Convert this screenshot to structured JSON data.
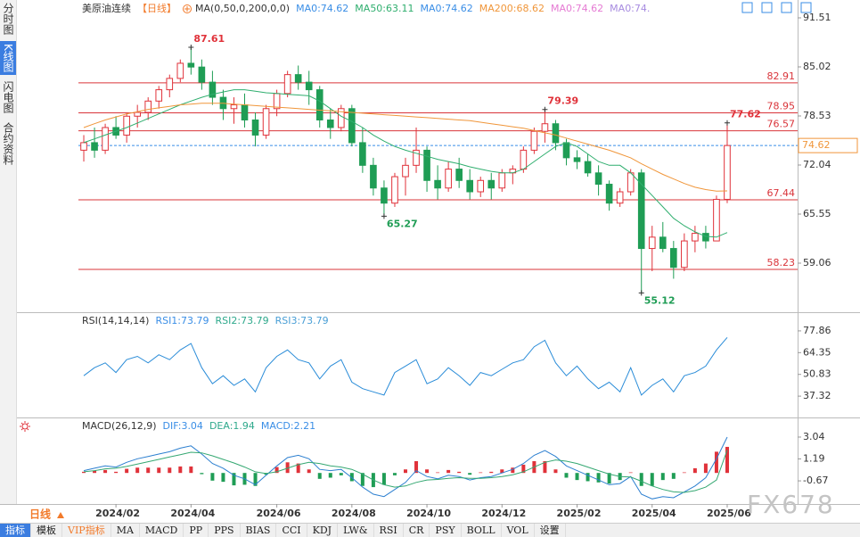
{
  "sidebar": {
    "tabs": [
      "分时图",
      "K线图",
      "闪电图",
      "合约资料"
    ]
  },
  "chart_data": [
    {
      "type": "candlestick",
      "title": "美原油连续",
      "period": "【日线】",
      "ma_params": "MA(0,50,0,200,0,0)",
      "legend": [
        {
          "text": "MA0:74.62",
          "color": "#3a8ee6"
        },
        {
          "text": "MA50:63.11",
          "color": "#2fae6e"
        },
        {
          "text": "MA0:74.62",
          "color": "#3a8ee6"
        },
        {
          "text": "MA200:68.62",
          "color": "#f0963a"
        },
        {
          "text": "MA0:74.62",
          "color": "#e57ad3"
        },
        {
          "text": "MA0:74.",
          "color": "#a78be0"
        }
      ],
      "open": [
        74,
        75,
        74,
        77,
        76,
        78.5,
        79,
        80.5,
        82,
        83.5,
        85.5,
        85,
        83,
        81,
        79.5,
        80,
        78,
        76,
        79.5,
        81.5,
        84,
        83,
        82,
        78,
        77,
        79.5,
        75,
        72,
        69,
        67,
        70.5,
        72,
        74,
        70,
        69,
        71.5,
        70,
        68.5,
        70,
        69,
        71,
        71.5,
        74,
        76.5,
        77.5,
        75,
        73,
        72.5,
        71,
        69.5,
        67,
        68.5,
        71,
        61,
        62.5,
        61,
        58.5,
        62,
        63,
        62,
        67.5
      ],
      "high": [
        76,
        77,
        77.5,
        78.5,
        79,
        80,
        81,
        82.5,
        84,
        86,
        87.61,
        86,
        84.5,
        82,
        81,
        81.5,
        79,
        80,
        82,
        84.5,
        85.2,
        84.5,
        82.5,
        79.5,
        80,
        80,
        77,
        73,
        70,
        71,
        73,
        77,
        74.5,
        72,
        72.5,
        73,
        71.5,
        70.5,
        71,
        71.5,
        72,
        74.5,
        77,
        79.39,
        78,
        75.5,
        74,
        73.5,
        72,
        70,
        69,
        71.5,
        71.5,
        64,
        64.5,
        62,
        63,
        64,
        64,
        68,
        77.62
      ],
      "low": [
        72.5,
        73,
        73.5,
        75.5,
        75,
        77,
        78,
        79.5,
        81,
        83,
        84,
        82,
        80,
        78,
        77.5,
        77,
        74.5,
        75.5,
        78.5,
        81,
        82,
        80,
        77,
        75.5,
        76.5,
        74.5,
        71,
        68,
        65.27,
        66.5,
        68,
        71,
        68.5,
        67.5,
        68.5,
        69,
        67.5,
        67.8,
        67.5,
        68.5,
        69.5,
        71,
        73.5,
        75,
        74,
        72,
        71.5,
        70.5,
        68,
        66,
        66.5,
        68,
        55.12,
        58,
        60.5,
        57,
        58,
        60.5,
        61,
        62,
        67
      ],
      "close": [
        75,
        74,
        77,
        76,
        78.5,
        79,
        80.5,
        82,
        83.5,
        85.5,
        85,
        83,
        81,
        79.5,
        80,
        78,
        76,
        79.5,
        81.5,
        84,
        83,
        82,
        78,
        77,
        79.5,
        75,
        72,
        69,
        67,
        70.5,
        72,
        74,
        70,
        69,
        71.5,
        70,
        68.5,
        70,
        69,
        71,
        71.5,
        74,
        76.5,
        77.5,
        75,
        73,
        72.5,
        71,
        69.5,
        67,
        68.5,
        71,
        61,
        62.5,
        61,
        58.5,
        62,
        63,
        62,
        67.5,
        74.62
      ],
      "up_color": "#e0323a",
      "down_color": "#1f9d55",
      "series": [
        {
          "color": "#2fae6e",
          "values": [
            75,
            75.5,
            76,
            76.5,
            77,
            77.6,
            78.2,
            78.8,
            79.4,
            80,
            80.5,
            81,
            81.4,
            81.7,
            82,
            82,
            81.8,
            81.6,
            81.5,
            81.4,
            81.3,
            81.2,
            80.5,
            79.5,
            78.5,
            77.8,
            77,
            76,
            75.2,
            74.5,
            74,
            73.6,
            73.2,
            72.8,
            72.5,
            72.2,
            71.8,
            71.5,
            71.2,
            71,
            71,
            71.5,
            72.5,
            73.5,
            74.5,
            75,
            74.5,
            73.5,
            72.5,
            72,
            72,
            71,
            69.5,
            68,
            66.5,
            65,
            64,
            63.2,
            62.6,
            62.5,
            63.11
          ]
        },
        {
          "color": "#f0963a",
          "values": [
            77,
            77.5,
            78,
            78.4,
            78.8,
            79.1,
            79.4,
            79.6,
            79.8,
            80,
            80.1,
            80.2,
            80.2,
            80.2,
            80.1,
            80,
            79.9,
            79.8,
            79.7,
            79.6,
            79.5,
            79.4,
            79.3,
            79.2,
            79.1,
            79,
            78.9,
            78.8,
            78.7,
            78.6,
            78.5,
            78.4,
            78.3,
            78.2,
            78.1,
            78,
            77.9,
            77.7,
            77.5,
            77.3,
            77.1,
            76.9,
            76.6,
            76.3,
            76,
            75.6,
            75.2,
            74.8,
            74.4,
            74,
            73.5,
            73,
            72.2,
            71.5,
            70.8,
            70.2,
            69.6,
            69.1,
            68.8,
            68.6,
            68.62
          ]
        }
      ],
      "levels": [
        82.91,
        78.95,
        76.57,
        67.44,
        58.23
      ],
      "level_color": "#d9343a",
      "current": 74.62,
      "current_color": "#3a8ee6",
      "current_label_color": "#f0963a",
      "annotations": [
        {
          "index": 10,
          "value": 87.61,
          "color": "#e0323a"
        },
        {
          "index": 28,
          "value": 65.27,
          "color": "#1f9d55"
        },
        {
          "index": 43,
          "value": 79.39,
          "color": "#e0323a"
        },
        {
          "index": 52,
          "value": 55.12,
          "color": "#1f9d55"
        },
        {
          "index": 60,
          "value": 77.62,
          "color": "#e0323a"
        }
      ],
      "ylim": [
        52.57,
        93.87
      ],
      "yticks": [
        91.51,
        85.02,
        78.53,
        72.04,
        65.55,
        59.06
      ]
    },
    {
      "type": "line",
      "title": "RSI(14,14,14)",
      "legend": [
        {
          "text": "RSI1:73.79",
          "color": "#3a8ee6"
        },
        {
          "text": "RSI2:73.79",
          "color": "#2fa98c"
        },
        {
          "text": "RSI3:73.79",
          "color": "#4a9fd6"
        }
      ],
      "series": [
        {
          "color": "#2a8cd8",
          "values": [
            50,
            55,
            58,
            52,
            60,
            62,
            58,
            63,
            60,
            66,
            70,
            55,
            45,
            50,
            44,
            48,
            40,
            55,
            62,
            66,
            60,
            58,
            48,
            56,
            60,
            46,
            42,
            40,
            38,
            52,
            56,
            60,
            45,
            48,
            55,
            50,
            44,
            52,
            50,
            54,
            58,
            60,
            68,
            72,
            58,
            50,
            56,
            48,
            42,
            46,
            40,
            55,
            38,
            44,
            48,
            40,
            50,
            52,
            56,
            66,
            73.79
          ]
        }
      ],
      "ylim": [
        24.08,
        88.34
      ],
      "yticks": [
        77.86,
        64.35,
        50.83,
        37.32
      ]
    },
    {
      "type": "macd",
      "title": "MACD(26,12,9)",
      "legend": [
        {
          "text": "DIF:3.04",
          "color": "#3a8ee6"
        },
        {
          "text": "DEA:1.94",
          "color": "#2fa98c"
        },
        {
          "text": "MACD:2.21",
          "color": "#3a8ee6"
        }
      ],
      "dif": {
        "color": "#2c7fd0",
        "values": [
          0.2,
          0.4,
          0.6,
          0.5,
          0.9,
          1.2,
          1.4,
          1.6,
          1.8,
          2.1,
          2.3,
          1.6,
          0.8,
          0.4,
          -0.2,
          -0.5,
          -1.0,
          -0.2,
          0.6,
          1.3,
          1.5,
          1.2,
          0.3,
          0.2,
          0.3,
          -0.4,
          -1.2,
          -1.8,
          -2.0,
          -1.4,
          -0.8,
          0.2,
          -0.3,
          -0.5,
          -0.2,
          -0.3,
          -0.6,
          -0.4,
          -0.3,
          0.0,
          0.3,
          0.8,
          1.5,
          1.9,
          1.4,
          0.6,
          0.2,
          -0.2,
          -0.6,
          -1.0,
          -0.9,
          -0.3,
          -1.8,
          -2.2,
          -2.0,
          -2.1,
          -1.6,
          -1.1,
          -0.4,
          1.2,
          3.04
        ]
      },
      "dea": {
        "color": "#35a872",
        "values": [
          0.1,
          0.2,
          0.35,
          0.4,
          0.55,
          0.75,
          0.95,
          1.15,
          1.35,
          1.55,
          1.75,
          1.7,
          1.45,
          1.15,
          0.85,
          0.5,
          0.1,
          -0.05,
          0.1,
          0.4,
          0.7,
          0.9,
          0.8,
          0.6,
          0.5,
          0.3,
          -0.1,
          -0.6,
          -1.0,
          -1.2,
          -1.1,
          -0.8,
          -0.6,
          -0.55,
          -0.45,
          -0.4,
          -0.45,
          -0.45,
          -0.4,
          -0.3,
          -0.15,
          0.1,
          0.5,
          0.9,
          1.1,
          1.0,
          0.8,
          0.5,
          0.2,
          -0.1,
          -0.3,
          -0.35,
          -0.7,
          -1.1,
          -1.4,
          -1.6,
          -1.65,
          -1.5,
          -1.2,
          -0.6,
          1.94
        ]
      },
      "hist": {
        "up_color": "#e0323a",
        "down_color": "#1f9d55",
        "values": [
          0.1,
          0.2,
          0.25,
          0.1,
          0.35,
          0.45,
          0.45,
          0.45,
          0.45,
          0.55,
          0.55,
          -0.1,
          -0.65,
          -0.75,
          -1.05,
          -1.0,
          -1.1,
          -0.15,
          0.5,
          0.9,
          0.8,
          0.3,
          -0.5,
          -0.4,
          -0.2,
          -0.7,
          -1.1,
          -1.2,
          -1.0,
          -0.2,
          0.3,
          1.0,
          0.3,
          0.05,
          0.25,
          0.1,
          -0.15,
          0.05,
          0.1,
          0.3,
          0.45,
          0.7,
          1.0,
          1.0,
          0.3,
          -0.4,
          -0.6,
          -0.7,
          -0.8,
          -0.9,
          -0.6,
          0.05,
          -1.1,
          -1.1,
          -0.6,
          -0.5,
          0.05,
          0.4,
          0.8,
          1.8,
          2.21
        ]
      },
      "ylim": [
        -2.63,
        4.55
      ],
      "yticks": [
        3.04,
        1.19,
        -0.67
      ],
      "categories": [
        null,
        null,
        null,
        "2024/02",
        null,
        null,
        null,
        null,
        null,
        null,
        "2024/04",
        null,
        null,
        null,
        null,
        null,
        null,
        null,
        "2024/06",
        null,
        null,
        null,
        null,
        null,
        null,
        "2024/08",
        null,
        null,
        null,
        null,
        null,
        null,
        "2024/10",
        null,
        null,
        null,
        null,
        null,
        null,
        "2024/12",
        null,
        null,
        null,
        null,
        null,
        null,
        "2025/02",
        null,
        null,
        null,
        null,
        null,
        null,
        "2025/04",
        null,
        null,
        null,
        null,
        null,
        null,
        "2025/06"
      ]
    }
  ],
  "footer": {
    "period": "日线"
  },
  "toolbar": [
    "指标",
    "模板",
    "VIP指标",
    "MA",
    "MACD",
    "PP",
    "PPS",
    "BIAS",
    "CCI",
    "KDJ",
    "LW&",
    "RSI",
    "CR",
    "PSY",
    "BOLL",
    "VOL",
    "设置"
  ],
  "watermark": "FX678"
}
